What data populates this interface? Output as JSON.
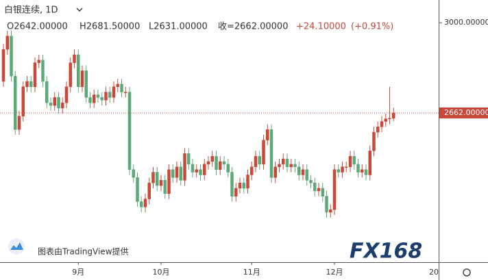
{
  "chart_data": {
    "type": "candlestick",
    "symbol": "白银连续, 1D",
    "ohlc_labels": [
      "O2642.00000",
      "H2681.50000",
      "L2631.00000",
      "收=2662.00000",
      "+24.10000",
      "(+0.91%)"
    ],
    "watermark": "图表由TradingView提供",
    "logo": "FX168",
    "up_color": "#c8483a",
    "down_color": "#5ea87a",
    "ylim": [
      2103,
      3085
    ],
    "yticks": [
      {
        "value": 3000,
        "label": "3000.00000"
      }
    ],
    "last_price": {
      "value": 2662,
      "label": "2662.00000"
    },
    "x_edge_label": "20",
    "categories": [
      null,
      null,
      null,
      null,
      null,
      null,
      null,
      null,
      null,
      null,
      null,
      null,
      null,
      null,
      null,
      null,
      null,
      null,
      null,
      "9月",
      null,
      null,
      null,
      null,
      null,
      null,
      null,
      null,
      null,
      null,
      null,
      null,
      null,
      null,
      null,
      null,
      null,
      null,
      null,
      null,
      "10月",
      null,
      null,
      null,
      null,
      null,
      null,
      null,
      null,
      null,
      null,
      null,
      null,
      null,
      null,
      null,
      null,
      null,
      null,
      null,
      null,
      null,
      null,
      "11月",
      null,
      null,
      null,
      null,
      null,
      null,
      null,
      null,
      null,
      null,
      null,
      null,
      null,
      null,
      null,
      null,
      null,
      null,
      null,
      null,
      "12月",
      null,
      null,
      null,
      null,
      null,
      null,
      null,
      null,
      null,
      null,
      null,
      null,
      null,
      null,
      null
    ],
    "open": [
      2780,
      2900,
      2950,
      2800,
      2600,
      2650,
      2760,
      2780,
      2760,
      2850,
      2860,
      2780,
      2700,
      2690,
      2720,
      2680,
      2700,
      2760,
      2850,
      2880,
      2760,
      2820,
      2720,
      2700,
      2730,
      2720,
      2710,
      2740,
      2720,
      2760,
      2770,
      2740,
      2740,
      2450,
      2420,
      2330,
      2310,
      2340,
      2400,
      2440,
      2390,
      2410,
      2360,
      2450,
      2420,
      2460,
      2410,
      2510,
      2470,
      2440,
      2450,
      2430,
      2470,
      2480,
      2500,
      2450,
      2480,
      2470,
      2440,
      2350,
      2380,
      2400,
      2380,
      2430,
      2460,
      2500,
      2470,
      2560,
      2600,
      2420,
      2460,
      2470,
      2490,
      2460,
      2470,
      2460,
      2430,
      2450,
      2410,
      2400,
      2370,
      2380,
      2350,
      2290,
      2300,
      2450,
      2440,
      2460,
      2460,
      2500,
      2470,
      2440,
      2450,
      2430,
      2520,
      2590,
      2610,
      2630,
      2640,
      2642
    ],
    "high": [
      2920,
      2970,
      2970,
      2820,
      2670,
      2780,
      2800,
      2800,
      2870,
      2880,
      2880,
      2800,
      2720,
      2740,
      2740,
      2720,
      2780,
      2870,
      2900,
      2900,
      2840,
      2840,
      2740,
      2750,
      2750,
      2740,
      2760,
      2760,
      2780,
      2790,
      2790,
      2760,
      2760,
      2470,
      2440,
      2350,
      2360,
      2420,
      2460,
      2460,
      2430,
      2430,
      2470,
      2470,
      2480,
      2480,
      2530,
      2530,
      2490,
      2470,
      2470,
      2490,
      2500,
      2520,
      2520,
      2500,
      2500,
      2490,
      2460,
      2400,
      2420,
      2420,
      2450,
      2480,
      2520,
      2520,
      2580,
      2620,
      2620,
      2480,
      2490,
      2510,
      2510,
      2490,
      2490,
      2480,
      2470,
      2470,
      2430,
      2420,
      2400,
      2400,
      2370,
      2320,
      2470,
      2470,
      2480,
      2480,
      2520,
      2520,
      2490,
      2470,
      2470,
      2540,
      2610,
      2630,
      2650,
      2660,
      2760,
      2681.5
    ],
    "low": [
      2760,
      2880,
      2780,
      2580,
      2580,
      2630,
      2740,
      2740,
      2740,
      2830,
      2760,
      2680,
      2670,
      2670,
      2660,
      2660,
      2680,
      2740,
      2830,
      2740,
      2740,
      2700,
      2680,
      2680,
      2700,
      2690,
      2690,
      2700,
      2700,
      2740,
      2720,
      2720,
      2430,
      2400,
      2310,
      2290,
      2290,
      2320,
      2380,
      2370,
      2370,
      2340,
      2340,
      2400,
      2400,
      2390,
      2390,
      2450,
      2420,
      2420,
      2410,
      2410,
      2450,
      2460,
      2430,
      2430,
      2450,
      2420,
      2330,
      2330,
      2360,
      2360,
      2360,
      2410,
      2440,
      2450,
      2450,
      2540,
      2400,
      2400,
      2440,
      2450,
      2440,
      2440,
      2440,
      2410,
      2410,
      2390,
      2380,
      2350,
      2350,
      2330,
      2270,
      2270,
      2280,
      2420,
      2420,
      2440,
      2440,
      2450,
      2420,
      2420,
      2410,
      2410,
      2500,
      2570,
      2590,
      2610,
      2620,
      2631
    ],
    "close": [
      2900,
      2950,
      2800,
      2600,
      2650,
      2760,
      2780,
      2760,
      2850,
      2860,
      2780,
      2700,
      2690,
      2720,
      2680,
      2700,
      2760,
      2850,
      2880,
      2760,
      2820,
      2720,
      2700,
      2730,
      2720,
      2710,
      2740,
      2720,
      2760,
      2770,
      2740,
      2740,
      2450,
      2420,
      2330,
      2310,
      2340,
      2400,
      2440,
      2390,
      2410,
      2360,
      2450,
      2420,
      2460,
      2410,
      2510,
      2470,
      2440,
      2450,
      2430,
      2470,
      2480,
      2500,
      2450,
      2480,
      2470,
      2440,
      2350,
      2380,
      2400,
      2380,
      2430,
      2460,
      2500,
      2470,
      2560,
      2600,
      2420,
      2460,
      2470,
      2490,
      2460,
      2470,
      2460,
      2430,
      2450,
      2410,
      2400,
      2370,
      2380,
      2350,
      2290,
      2300,
      2450,
      2440,
      2460,
      2460,
      2500,
      2470,
      2440,
      2450,
      2430,
      2520,
      2590,
      2610,
      2630,
      2640,
      2642,
      2662
    ]
  }
}
